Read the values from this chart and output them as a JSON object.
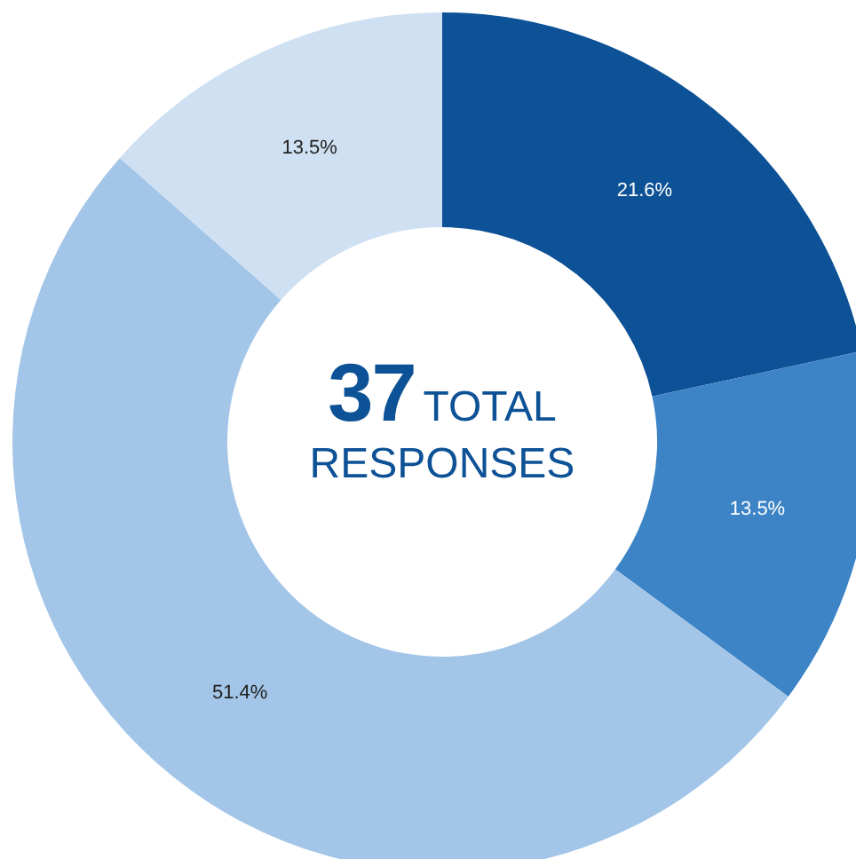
{
  "chart_data": {
    "type": "donut",
    "categories": [
      null,
      null,
      null,
      null
    ],
    "values": [
      21.6,
      13.5,
      51.4,
      13.5
    ],
    "colors": [
      "#0d5196",
      "#3d84c6",
      "#a3c6e8",
      "#cfe0f2"
    ],
    "value_labels": [
      "21.6%",
      "13.5%",
      "51.4%",
      "13.5%"
    ],
    "legend": false,
    "annotations": [
      "37",
      "TOTAL RESPONSES"
    ]
  }
}
